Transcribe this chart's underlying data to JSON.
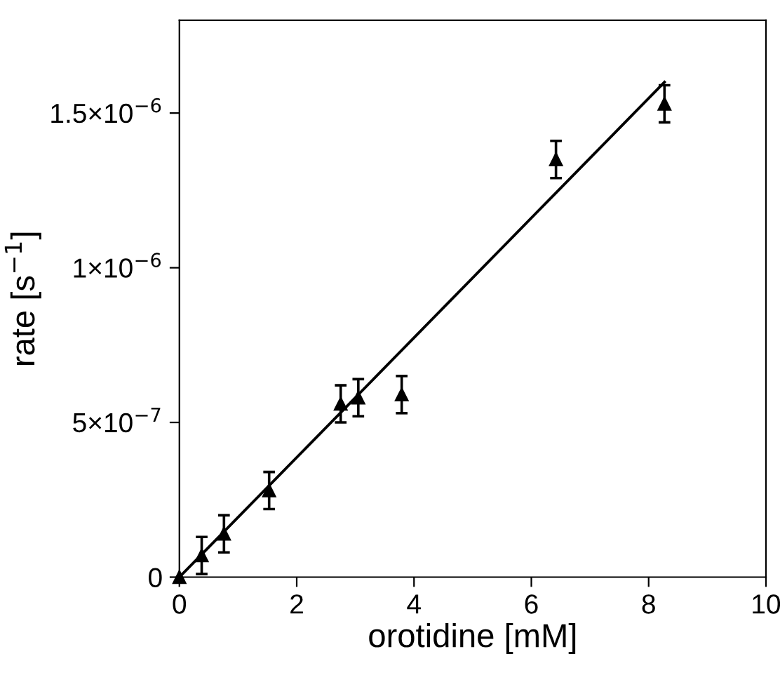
{
  "chart_data": {
    "type": "scatter",
    "xlabel": "orotidine [mM]",
    "ylabel": "rate [s$^{−1}$]",
    "xlim": [
      0,
      10
    ],
    "xticks": [
      0,
      2,
      4,
      6,
      8,
      10
    ],
    "ylim": [
      0,
      1.8e-06
    ],
    "yticks": [
      {
        "value": 0,
        "label": "0"
      },
      {
        "value": 5e-07,
        "label": "5×10$^{−7}$"
      },
      {
        "value": 1e-06,
        "label": "1×10$^{−6}$"
      },
      {
        "value": 1.5e-06,
        "label": "1.5×10$^{−6}$"
      }
    ],
    "grid": false,
    "legend": false,
    "series": [
      {
        "color": "#000000",
        "marker": "triangle",
        "x": [
          0,
          0.38,
          0.76,
          1.53,
          2.75,
          3.05,
          3.79,
          6.42,
          8.27
        ],
        "values": [
          0,
          7e-08,
          1.4e-07,
          2.8e-07,
          5.6e-07,
          5.8e-07,
          5.9e-07,
          1.35e-06,
          1.53e-06
        ],
        "errors": [
          null,
          6e-08,
          6e-08,
          6e-08,
          6e-08,
          6e-08,
          6e-08,
          6e-08,
          6e-08
        ]
      },
      {
        "type": "line",
        "color": "#000000",
        "line_style": "solid",
        "marker": "none",
        "x": [
          0,
          8.27
        ],
        "values": [
          0,
          1.6e-06
        ]
      }
    ]
  }
}
